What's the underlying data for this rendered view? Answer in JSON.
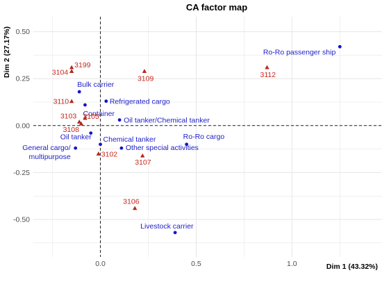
{
  "chart_data": {
    "type": "scatter",
    "title": "CA factor map",
    "xlabel": "Dim 1 (43.32%)",
    "ylabel": "Dim 2 (27.17%)",
    "xlim": [
      -0.35,
      1.47
    ],
    "ylim": [
      -0.7,
      0.58
    ],
    "x_ticks": [
      0.0,
      0.5,
      1.0
    ],
    "x_tick_labels": [
      "0.0",
      "0.5",
      "1.0"
    ],
    "y_ticks": [
      -0.5,
      -0.25,
      0.0,
      0.25,
      0.5
    ],
    "y_tick_labels": [
      "-0.50",
      "-0.25",
      "0.00",
      "0.25",
      "0.50"
    ],
    "grid": true,
    "reference_lines": {
      "x": 0,
      "y": 0
    },
    "colors": {
      "rows": "#1414c8",
      "cols": "#b4281e",
      "label_rows": "#1e1ec8",
      "label_cols": "#c8281e",
      "grid": "#e6e6e6"
    },
    "series": [
      {
        "marker": "circle",
        "points": [
          {
            "label": "Ro-Ro passenger ship",
            "x": 1.25,
            "y": 0.42
          },
          {
            "label": "Bulk carrier",
            "x": -0.11,
            "y": 0.18
          },
          {
            "label": "Refrigerated cargo",
            "x": 0.03,
            "y": 0.13
          },
          {
            "label": "Container",
            "x": -0.08,
            "y": 0.11
          },
          {
            "label": "Oil tanker/Chemical tanker",
            "x": 0.1,
            "y": 0.03
          },
          {
            "label": "Oil tanker",
            "x": -0.05,
            "y": -0.04
          },
          {
            "label": "Ro-Ro cargo",
            "x": 0.45,
            "y": -0.1
          },
          {
            "label": "Chemical tanker",
            "x": 0.0,
            "y": -0.1
          },
          {
            "label": "Other special activities",
            "x": 0.11,
            "y": -0.12
          },
          {
            "label": "General cargo/\nmultipurpose",
            "x": -0.13,
            "y": -0.12
          },
          {
            "label": "Livestock carrier",
            "x": 0.39,
            "y": -0.57
          }
        ]
      },
      {
        "marker": "triangle",
        "points": [
          {
            "label": "3199",
            "x": -0.15,
            "y": 0.31
          },
          {
            "label": "3104",
            "x": -0.15,
            "y": 0.29
          },
          {
            "label": "3109",
            "x": 0.23,
            "y": 0.29
          },
          {
            "label": "3112",
            "x": 0.87,
            "y": 0.31
          },
          {
            "label": "3110",
            "x": -0.15,
            "y": 0.13
          },
          {
            "label": "3103",
            "x": -0.11,
            "y": 0.02
          },
          {
            "label": "3105",
            "x": -0.08,
            "y": 0.04
          },
          {
            "label": "3108",
            "x": -0.1,
            "y": 0.01
          },
          {
            "label": "3102",
            "x": -0.01,
            "y": -0.15
          },
          {
            "label": "3107",
            "x": 0.22,
            "y": -0.16
          },
          {
            "label": "3106",
            "x": 0.18,
            "y": -0.44
          }
        ]
      }
    ]
  }
}
